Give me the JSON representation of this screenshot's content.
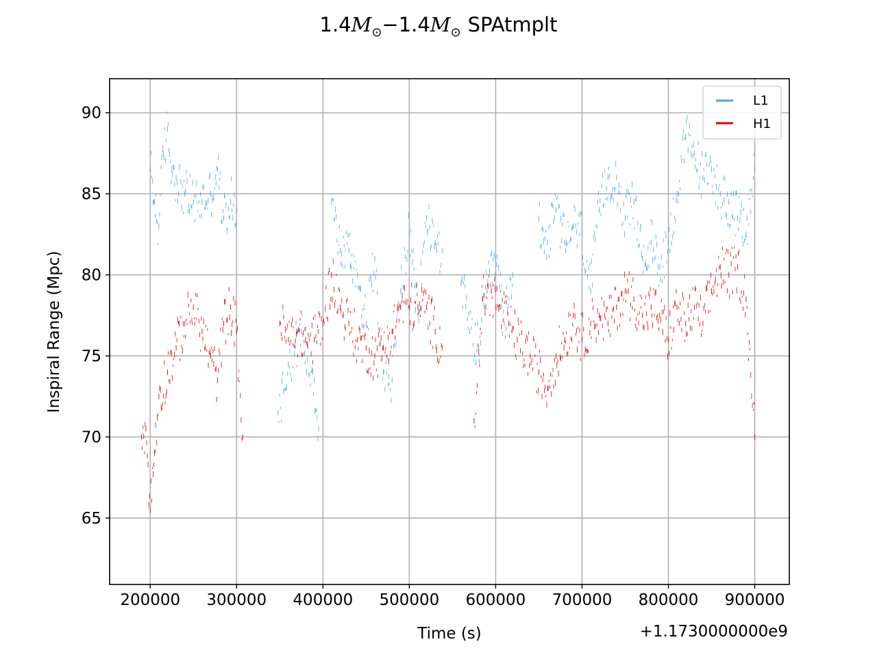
{
  "chart_data": {
    "type": "scatter",
    "title": {
      "mass": "1.4",
      "symbol": "M",
      "subscript": "⊙",
      "separator": "−",
      "suffix": "SPAtmplt"
    },
    "xlabel": "Time (s)",
    "ylabel": "Inspiral Range (Mpc)",
    "x_offset_label": "+1.1730000000e9",
    "xlim": [
      153000,
      940000
    ],
    "ylim": [
      60.9,
      92.1
    ],
    "x_ticks": [
      200000,
      300000,
      400000,
      500000,
      600000,
      700000,
      800000,
      900000
    ],
    "x_tick_labels": [
      "200000",
      "300000",
      "400000",
      "500000",
      "600000",
      "700000",
      "800000",
      "900000"
    ],
    "y_ticks": [
      65,
      70,
      75,
      80,
      85,
      90
    ],
    "y_tick_labels": [
      "65",
      "70",
      "75",
      "80",
      "85",
      "90"
    ],
    "grid": true,
    "legend_position": "upper right",
    "series": [
      {
        "name": "L1",
        "color": "#4ba3f0",
        "segments": [
          {
            "x": [
              200000,
              205000,
              210000,
              215000,
              220000,
              225000,
              230000,
              240000,
              250000,
              260000,
              270000,
              278000,
              285000,
              293000,
              300000
            ],
            "y": [
              86.5,
              84.5,
              83.0,
              87.5,
              89.0,
              86.5,
              86.0,
              85.0,
              84.5,
              84.5,
              85.0,
              86.5,
              83.5,
              84.5,
              84.0
            ]
          },
          {
            "x": [
              348000,
              360000,
              375000,
              390000,
              395000
            ],
            "y": [
              71.5,
              74.5,
              76.5,
              73.5,
              70.5
            ]
          },
          {
            "x": [
              410000,
              420000,
              430000,
              440000,
              450000,
              460000,
              470000,
              480000,
              490000,
              500000,
              510000,
              520000,
              530000,
              538000
            ],
            "y": [
              84.5,
              81.5,
              81.5,
              80.0,
              77.0,
              81.0,
              74.0,
              73.5,
              79.0,
              82.5,
              77.5,
              83.5,
              82.0,
              81.5
            ]
          },
          {
            "x": [
              560000,
              570000,
              580000,
              590000,
              600000,
              610000,
              620000
            ],
            "y": [
              79.5,
              76.5,
              75.5,
              79.0,
              81.0,
              77.0,
              80.0
            ]
          },
          {
            "x": [
              650000,
              660000,
              670000,
              680000,
              690000,
              700000,
              710000,
              720000,
              730000,
              740000,
              750000,
              760000,
              770000,
              780000,
              790000,
              800000,
              810000,
              820000,
              830000,
              840000,
              850000,
              860000,
              870000,
              880000,
              890000,
              900000
            ],
            "y": [
              83.5,
              82.0,
              84.0,
              82.0,
              83.0,
              82.5,
              79.0,
              84.0,
              86.0,
              86.0,
              83.5,
              84.5,
              81.0,
              82.0,
              80.5,
              82.0,
              85.0,
              88.5,
              87.5,
              86.0,
              86.5,
              85.0,
              84.5,
              83.5,
              82.5,
              86.5
            ]
          }
        ]
      },
      {
        "name": "H1",
        "color": "#e00000",
        "segments": [
          {
            "x": [
              190000,
              195000,
              200000,
              205000,
              210000,
              220000,
              230000,
              240000,
              250000,
              260000,
              270000,
              278000,
              285000,
              293000,
              300000,
              307000
            ],
            "y": [
              70.0,
              70.5,
              65.5,
              69.0,
              72.5,
              74.0,
              75.5,
              77.0,
              78.0,
              76.5,
              75.0,
              73.5,
              77.0,
              78.0,
              76.5,
              70.0
            ]
          },
          {
            "x": [
              350000,
              360000,
              370000,
              380000,
              390000,
              400000,
              410000,
              420000,
              430000,
              440000,
              450000,
              460000,
              470000,
              480000,
              490000,
              500000,
              510000,
              520000,
              530000,
              538000
            ],
            "y": [
              77.0,
              76.0,
              76.5,
              76.0,
              76.0,
              77.0,
              80.0,
              78.0,
              77.0,
              76.0,
              75.5,
              75.0,
              75.5,
              76.5,
              78.0,
              78.0,
              78.0,
              78.0,
              76.5,
              75.5
            ]
          },
          {
            "x": [
              575000,
              585000,
              595000,
              605000,
              615000,
              625000,
              640000,
              650000,
              660000,
              670000,
              680000,
              690000,
              700000,
              710000,
              720000,
              730000,
              740000,
              750000,
              760000,
              770000,
              780000,
              790000,
              800000,
              810000,
              820000,
              830000,
              840000,
              850000,
              860000,
              870000,
              880000,
              890000,
              900000
            ],
            "y": [
              71.0,
              78.5,
              79.0,
              78.0,
              77.0,
              76.0,
              75.0,
              74.0,
              73.0,
              75.0,
              76.0,
              77.5,
              76.0,
              77.0,
              77.5,
              77.0,
              78.0,
              79.0,
              78.5,
              77.5,
              78.0,
              77.5,
              76.0,
              78.0,
              77.0,
              78.0,
              77.0,
              79.0,
              80.5,
              80.0,
              80.5,
              78.5,
              70.0
            ]
          }
        ]
      }
    ]
  }
}
